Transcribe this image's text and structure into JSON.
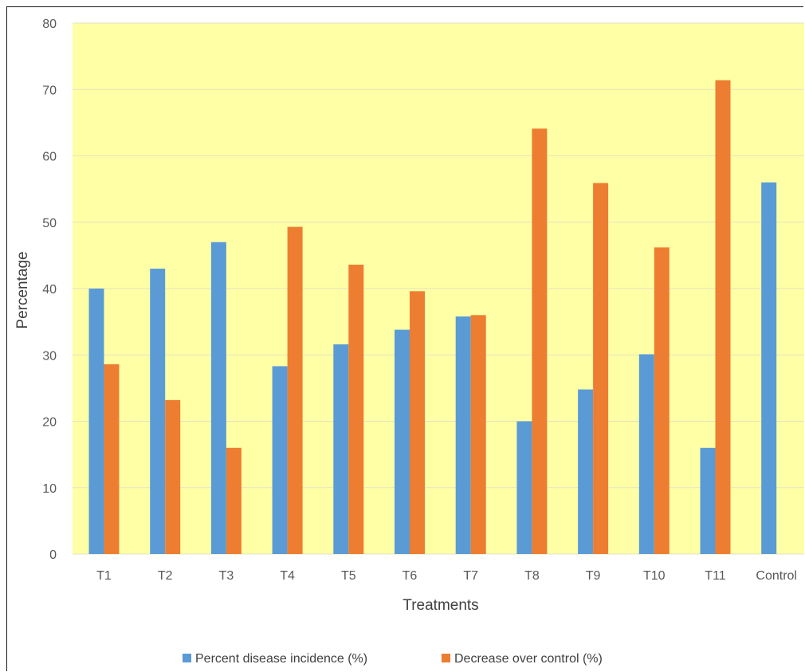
{
  "chart_data": {
    "type": "bar",
    "title": "",
    "xlabel": "Treatments",
    "ylabel": "Percentage",
    "ylim": [
      0,
      80
    ],
    "yticks": [
      0,
      10,
      20,
      30,
      40,
      50,
      60,
      70,
      80
    ],
    "grid": true,
    "legend_position": "bottom",
    "plot_background": "#FFFFA6",
    "categories": [
      "T1",
      "T2",
      "T3",
      "T4",
      "T5",
      "T6",
      "T7",
      "T8",
      "T9",
      "T10",
      "T11",
      "Control"
    ],
    "series": [
      {
        "name": "Percent disease incidence (%)",
        "color": "#5B9BD5",
        "values": [
          40,
          43,
          47,
          28.3,
          31.6,
          33.8,
          35.8,
          20,
          24.8,
          30.1,
          16,
          56
        ]
      },
      {
        "name": "Decrease over control (%)",
        "color": "#ED7D31",
        "values": [
          28.6,
          23.2,
          16,
          49.3,
          43.6,
          39.6,
          36,
          64.1,
          55.9,
          46.2,
          71.4,
          null
        ]
      }
    ]
  }
}
